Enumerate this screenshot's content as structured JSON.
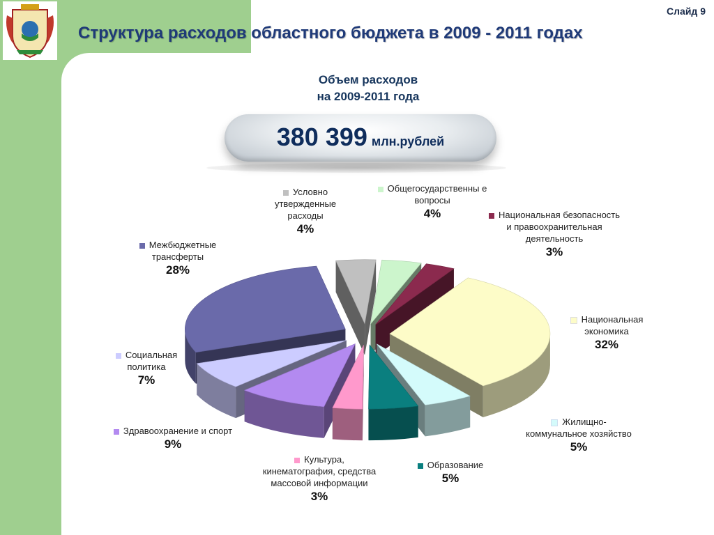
{
  "slide": {
    "number_label": "Слайд 9"
  },
  "title": "Структура расходов областного бюджета в 2009 - 2011 годах",
  "summary": {
    "heading_line1": "Объем расходов",
    "heading_line2": "на 2009-2011 года",
    "value": "380 399",
    "unit": "млн.рублей"
  },
  "chart_data": {
    "type": "pie",
    "unit": "%",
    "slices": [
      {
        "label": "Общегосударственные вопросы",
        "display_label": "Общегосударственны е вопросы",
        "value": 4,
        "pct": "4%",
        "color": "#ccf5cc"
      },
      {
        "label": "Национальная безопасность и правоохранительная деятельность",
        "value": 3,
        "pct": "3%",
        "color": "#8b2a4e"
      },
      {
        "label": "Национальная экономика",
        "value": 32,
        "pct": "32%",
        "color": "#fdfcc8"
      },
      {
        "label": "Жилищно-коммунальное хозяйство",
        "value": 5,
        "pct": "5%",
        "color": "#d4fbfb"
      },
      {
        "label": "Образование",
        "value": 5,
        "pct": "5%",
        "color": "#0a7f7f"
      },
      {
        "label": "Культура, кинематография, средства массовой информации",
        "value": 3,
        "pct": "3%",
        "color": "#ff99cc"
      },
      {
        "label": "Здравоохранение и спорт",
        "value": 9,
        "pct": "9%",
        "color": "#b38af0"
      },
      {
        "label": "Социальная политика",
        "value": 7,
        "pct": "7%",
        "color": "#ccccff"
      },
      {
        "label": "Межбюджетные трансферты",
        "value": 28,
        "pct": "28%",
        "color": "#6a6aaa"
      },
      {
        "label": "Условно утвержденные расходы",
        "value": 4,
        "pct": "4%",
        "color": "#c0c0c0"
      }
    ]
  }
}
